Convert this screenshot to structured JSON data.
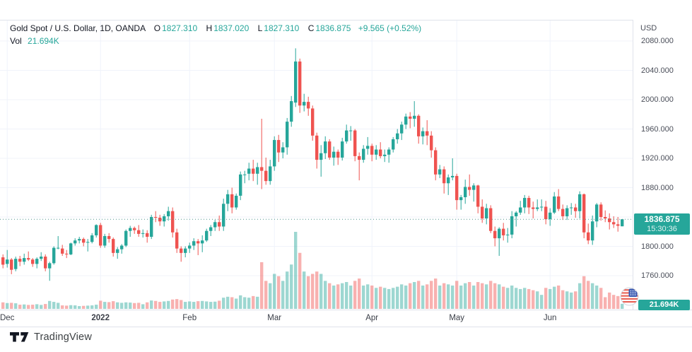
{
  "header": {
    "symbol_title": "Gold Spot / U.S. Dollar, 1D, OANDA",
    "ohlc": {
      "o_key": "O",
      "o": "1827.310",
      "h_key": "H",
      "h": "1837.020",
      "l_key": "L",
      "l": "1827.310",
      "c_key": "C",
      "c": "1836.875",
      "change": "+9.565 (+0.52%)"
    },
    "vol_key": "Vol",
    "vol_value": "21.694K"
  },
  "axes": {
    "currency_label": "USD"
  },
  "price_badge": {
    "price": "1836.875",
    "countdown": "15:30:36"
  },
  "volume_badge": {
    "value": "21.694K"
  },
  "branding": {
    "logo_text": "TradingView"
  },
  "colors": {
    "up": "#26a69a",
    "down": "#ef5350",
    "vol_up": "rgba(38,166,154,0.45)",
    "vol_down": "rgba(239,83,80,0.45)",
    "grid": "#f0f3fa",
    "frame": "#e0e3eb",
    "badge_bg": "#26a69a",
    "last_price_line": "#4f948c",
    "axis_text": "#4a4e59",
    "header_text": "#131722"
  },
  "chart_data": {
    "type": "candlestick+volume",
    "title": "Gold Spot / U.S. Dollar, 1D, OANDA",
    "ylabel": "USD",
    "last_price": 1836.875,
    "price_grid": [
      2080,
      2040,
      2000,
      1960,
      1920,
      1880,
      1840,
      1800,
      1760
    ],
    "price_tick_labels": [
      "2080.000",
      "2040.000",
      "2000.000",
      "1960.000",
      "1920.000",
      "1880.000",
      "1800.000",
      "1760.000"
    ],
    "price_tick_values": [
      2080,
      2040,
      2000,
      1960,
      1920,
      1880,
      1800,
      1760
    ],
    "ylim": [
      1745,
      2085
    ],
    "time_ticks": [
      {
        "label": "Dec",
        "index": 1,
        "bold": false
      },
      {
        "label": "2022",
        "index": 23,
        "bold": true
      },
      {
        "label": "Feb",
        "index": 44,
        "bold": false
      },
      {
        "label": "Mar",
        "index": 64,
        "bold": false
      },
      {
        "label": "Apr",
        "index": 87,
        "bold": false
      },
      {
        "label": "May",
        "index": 107,
        "bold": false
      },
      {
        "label": "Jun",
        "index": 129,
        "bold": false
      }
    ],
    "volume_axis_max_k": 330,
    "candles_format": [
      "open",
      "high",
      "low",
      "close",
      "volume_k"
    ],
    "candles": [
      [
        1785,
        1789,
        1770,
        1775,
        28
      ],
      [
        1776,
        1795,
        1771,
        1782,
        25
      ],
      [
        1782,
        1784,
        1762,
        1768,
        26
      ],
      [
        1769,
        1786,
        1766,
        1783,
        24
      ],
      [
        1783,
        1787,
        1773,
        1779,
        18
      ],
      [
        1779,
        1790,
        1775,
        1784,
        19
      ],
      [
        1784,
        1793,
        1780,
        1782,
        17
      ],
      [
        1782,
        1784,
        1772,
        1776,
        18
      ],
      [
        1776,
        1785,
        1770,
        1783,
        20
      ],
      [
        1783,
        1792,
        1780,
        1786,
        17
      ],
      [
        1786,
        1789,
        1766,
        1770,
        21
      ],
      [
        1770,
        1779,
        1753,
        1777,
        34
      ],
      [
        1777,
        1800,
        1775,
        1798,
        30
      ],
      [
        1798,
        1814,
        1796,
        1798,
        26
      ],
      [
        1797,
        1802,
        1787,
        1790,
        15
      ],
      [
        1790,
        1795,
        1784,
        1789,
        14
      ],
      [
        1789,
        1805,
        1788,
        1804,
        16
      ],
      [
        1804,
        1811,
        1801,
        1808,
        15
      ],
      [
        1808,
        1813,
        1804,
        1810,
        12
      ],
      [
        1810,
        1812,
        1800,
        1805,
        13
      ],
      [
        1805,
        1810,
        1793,
        1806,
        14
      ],
      [
        1806,
        1818,
        1804,
        1815,
        15
      ],
      [
        1815,
        1830,
        1812,
        1829,
        18
      ],
      [
        1829,
        1832,
        1798,
        1801,
        35
      ],
      [
        1801,
        1817,
        1798,
        1814,
        30
      ],
      [
        1814,
        1818,
        1805,
        1810,
        29
      ],
      [
        1810,
        1812,
        1786,
        1791,
        33
      ],
      [
        1791,
        1799,
        1783,
        1796,
        28
      ],
      [
        1796,
        1803,
        1790,
        1801,
        26
      ],
      [
        1801,
        1823,
        1799,
        1821,
        28
      ],
      [
        1821,
        1828,
        1813,
        1825,
        27
      ],
      [
        1825,
        1827,
        1817,
        1822,
        25
      ],
      [
        1822,
        1829,
        1813,
        1817,
        26
      ],
      [
        1817,
        1823,
        1812,
        1818,
        20
      ],
      [
        1818,
        1822,
        1805,
        1813,
        28
      ],
      [
        1813,
        1843,
        1810,
        1840,
        36
      ],
      [
        1840,
        1848,
        1833,
        1839,
        34
      ],
      [
        1839,
        1843,
        1828,
        1834,
        30
      ],
      [
        1834,
        1844,
        1827,
        1841,
        32
      ],
      [
        1841,
        1854,
        1835,
        1848,
        34
      ],
      [
        1848,
        1853,
        1812,
        1819,
        40
      ],
      [
        1819,
        1824,
        1791,
        1797,
        42
      ],
      [
        1797,
        1800,
        1779,
        1791,
        38
      ],
      [
        1791,
        1800,
        1785,
        1797,
        30
      ],
      [
        1797,
        1805,
        1791,
        1801,
        32
      ],
      [
        1801,
        1811,
        1795,
        1807,
        30
      ],
      [
        1807,
        1810,
        1788,
        1804,
        33
      ],
      [
        1804,
        1815,
        1792,
        1808,
        34
      ],
      [
        1808,
        1824,
        1806,
        1821,
        32
      ],
      [
        1821,
        1829,
        1814,
        1826,
        30
      ],
      [
        1826,
        1836,
        1821,
        1833,
        31
      ],
      [
        1833,
        1842,
        1821,
        1827,
        35
      ],
      [
        1827,
        1865,
        1821,
        1858,
        48
      ],
      [
        1858,
        1877,
        1848,
        1871,
        52
      ],
      [
        1871,
        1880,
        1845,
        1853,
        50
      ],
      [
        1853,
        1872,
        1850,
        1869,
        44
      ],
      [
        1869,
        1902,
        1863,
        1898,
        58
      ],
      [
        1898,
        1903,
        1886,
        1898,
        50
      ],
      [
        1899,
        1914,
        1890,
        1906,
        48
      ],
      [
        1906,
        1918,
        1889,
        1899,
        55
      ],
      [
        1899,
        1914,
        1884,
        1908,
        52
      ],
      [
        1908,
        1974,
        1878,
        1903,
        200
      ],
      [
        1903,
        1921,
        1884,
        1889,
        120
      ],
      [
        1889,
        1918,
        1884,
        1909,
        110
      ],
      [
        1909,
        1950,
        1903,
        1945,
        150
      ],
      [
        1945,
        1952,
        1915,
        1928,
        140
      ],
      [
        1928,
        1942,
        1920,
        1935,
        120
      ],
      [
        1935,
        1975,
        1925,
        1970,
        160
      ],
      [
        1970,
        2005,
        1963,
        1998,
        190
      ],
      [
        1996,
        2070,
        1990,
        2052,
        330
      ],
      [
        2052,
        2056,
        1982,
        1992,
        240
      ],
      [
        1992,
        2008,
        1984,
        1997,
        160
      ],
      [
        1997,
        2004,
        1978,
        1988,
        140
      ],
      [
        1988,
        1992,
        1944,
        1951,
        150
      ],
      [
        1951,
        1955,
        1906,
        1918,
        160
      ],
      [
        1918,
        1938,
        1895,
        1927,
        150
      ],
      [
        1927,
        1950,
        1919,
        1943,
        120
      ],
      [
        1943,
        1946,
        1918,
        1921,
        110
      ],
      [
        1921,
        1936,
        1910,
        1929,
        100
      ],
      [
        1929,
        1932,
        1911,
        1921,
        105
      ],
      [
        1921,
        1948,
        1917,
        1943,
        110
      ],
      [
        1943,
        1966,
        1940,
        1958,
        115
      ],
      [
        1958,
        1964,
        1944,
        1958,
        100
      ],
      [
        1958,
        1960,
        1916,
        1923,
        120
      ],
      [
        1923,
        1928,
        1890,
        1918,
        130
      ],
      [
        1918,
        1938,
        1914,
        1933,
        100
      ],
      [
        1933,
        1949,
        1925,
        1937,
        105
      ],
      [
        1937,
        1940,
        1916,
        1925,
        100
      ],
      [
        1925,
        1938,
        1918,
        1932,
        90
      ],
      [
        1932,
        1942,
        1920,
        1923,
        95
      ],
      [
        1923,
        1932,
        1915,
        1925,
        90
      ],
      [
        1925,
        1935,
        1914,
        1932,
        85
      ],
      [
        1932,
        1949,
        1928,
        1946,
        90
      ],
      [
        1946,
        1960,
        1940,
        1954,
        95
      ],
      [
        1954,
        1970,
        1945,
        1966,
        105
      ],
      [
        1966,
        1981,
        1960,
        1977,
        100
      ],
      [
        1977,
        1983,
        1961,
        1974,
        110
      ],
      [
        1974,
        1998,
        1963,
        1978,
        115
      ],
      [
        1978,
        1980,
        1940,
        1950,
        120
      ],
      [
        1950,
        1962,
        1939,
        1957,
        100
      ],
      [
        1957,
        1972,
        1938,
        1951,
        105
      ],
      [
        1951,
        1957,
        1921,
        1931,
        120
      ],
      [
        1931,
        1935,
        1890,
        1898,
        130
      ],
      [
        1898,
        1911,
        1893,
        1905,
        100
      ],
      [
        1905,
        1909,
        1872,
        1886,
        110
      ],
      [
        1886,
        1898,
        1870,
        1894,
        105
      ],
      [
        1894,
        1920,
        1890,
        1896,
        100
      ],
      [
        1896,
        1899,
        1850,
        1863,
        120
      ],
      [
        1863,
        1870,
        1850,
        1867,
        100
      ],
      [
        1867,
        1891,
        1858,
        1881,
        110
      ],
      [
        1881,
        1898,
        1869,
        1877,
        115
      ],
      [
        1877,
        1886,
        1861,
        1883,
        100
      ],
      [
        1883,
        1884,
        1845,
        1854,
        115
      ],
      [
        1854,
        1864,
        1832,
        1838,
        110
      ],
      [
        1838,
        1858,
        1830,
        1852,
        105
      ],
      [
        1852,
        1856,
        1818,
        1821,
        120
      ],
      [
        1821,
        1827,
        1800,
        1811,
        110
      ],
      [
        1811,
        1826,
        1787,
        1824,
        105
      ],
      [
        1824,
        1832,
        1808,
        1815,
        95
      ],
      [
        1815,
        1825,
        1805,
        1816,
        90
      ],
      [
        1816,
        1848,
        1811,
        1841,
        100
      ],
      [
        1841,
        1848,
        1827,
        1846,
        90
      ],
      [
        1846,
        1862,
        1843,
        1853,
        85
      ],
      [
        1853,
        1870,
        1845,
        1866,
        90
      ],
      [
        1866,
        1869,
        1844,
        1853,
        85
      ],
      [
        1853,
        1861,
        1838,
        1851,
        80
      ],
      [
        1851,
        1864,
        1848,
        1853,
        75
      ],
      [
        1853,
        1864,
        1848,
        1854,
        60
      ],
      [
        1854,
        1862,
        1830,
        1837,
        90
      ],
      [
        1837,
        1852,
        1828,
        1846,
        85
      ],
      [
        1846,
        1874,
        1844,
        1868,
        95
      ],
      [
        1868,
        1878,
        1848,
        1851,
        100
      ],
      [
        1851,
        1857,
        1836,
        1841,
        80
      ],
      [
        1841,
        1856,
        1836,
        1852,
        75
      ],
      [
        1852,
        1859,
        1843,
        1853,
        70
      ],
      [
        1853,
        1858,
        1839,
        1848,
        75
      ],
      [
        1848,
        1875,
        1838,
        1871,
        110
      ],
      [
        1871,
        1872,
        1811,
        1819,
        140
      ],
      [
        1819,
        1831,
        1803,
        1808,
        120
      ],
      [
        1808,
        1842,
        1802,
        1834,
        110
      ],
      [
        1834,
        1859,
        1826,
        1857,
        100
      ],
      [
        1857,
        1860,
        1835,
        1840,
        90
      ],
      [
        1840,
        1849,
        1833,
        1838,
        50
      ],
      [
        1838,
        1845,
        1823,
        1833,
        70
      ],
      [
        1833,
        1841,
        1825,
        1830,
        60
      ],
      [
        1830,
        1840,
        1820,
        1828,
        55
      ],
      [
        1827.31,
        1837.02,
        1827.31,
        1836.875,
        21.694
      ]
    ]
  }
}
